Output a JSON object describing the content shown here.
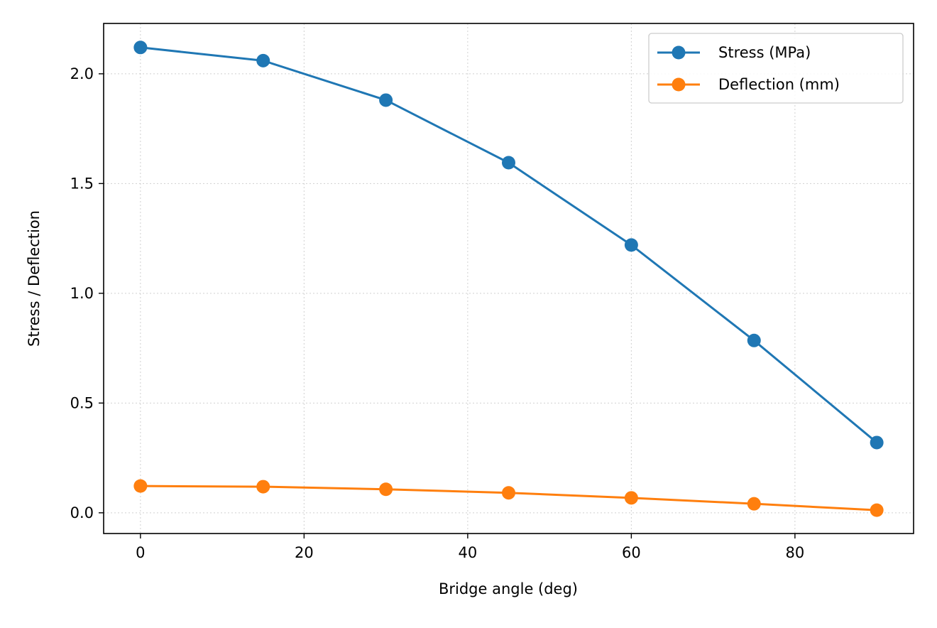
{
  "chart_data": {
    "type": "line",
    "title": "",
    "xlabel": "Bridge angle (deg)",
    "ylabel": "Stress / Deflection",
    "xlim": [
      -4.5,
      94.5
    ],
    "ylim": [
      -0.0944,
      2.2294
    ],
    "xticks": [
      0,
      20,
      40,
      60,
      80
    ],
    "yticks": [
      0.0,
      0.5,
      1.0,
      1.5,
      2.0
    ],
    "xtick_labels": [
      "0",
      "20",
      "40",
      "60",
      "80"
    ],
    "ytick_labels": [
      "0.0",
      "0.5",
      "1.0",
      "1.5",
      "2.0"
    ],
    "grid": true,
    "legend_position": "top-right",
    "x": [
      0,
      15,
      30,
      45,
      60,
      75,
      90
    ],
    "series": [
      {
        "name": "Stress (MPa)",
        "color": "#1f77b4",
        "marker": "circle",
        "values": [
          2.12,
          2.06,
          1.88,
          1.595,
          1.22,
          0.785,
          0.32
        ]
      },
      {
        "name": "Deflection (mm)",
        "color": "#ff7f0e",
        "marker": "circle",
        "values": [
          0.122,
          0.119,
          0.107,
          0.091,
          0.068,
          0.041,
          0.012
        ]
      }
    ]
  }
}
